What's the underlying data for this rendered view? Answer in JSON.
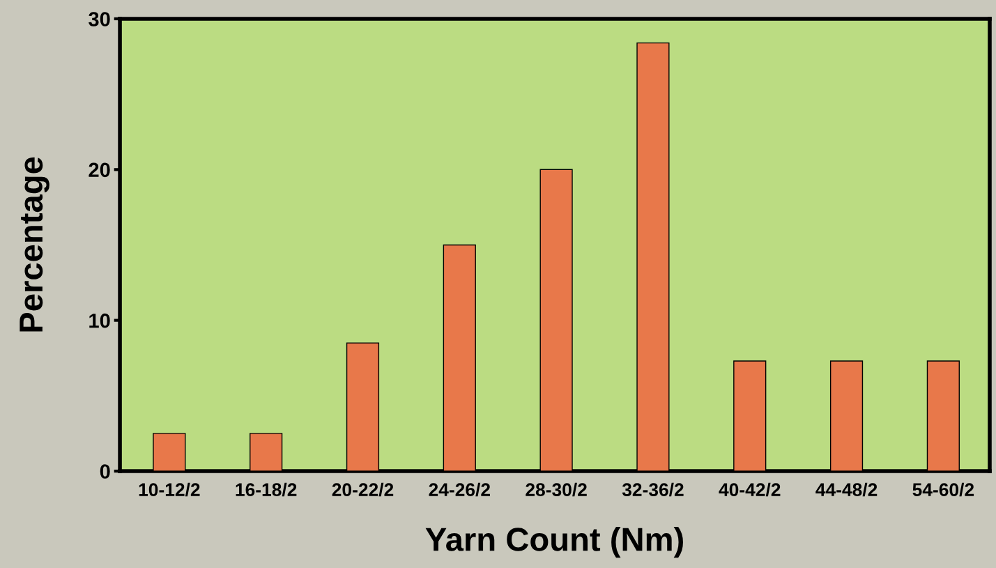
{
  "chart_data": {
    "type": "bar",
    "xlabel": "Yarn Count (Nm)",
    "ylabel": "Percentage",
    "categories": [
      "10-12/2",
      "16-18/2",
      "20-22/2",
      "24-26/2",
      "28-30/2",
      "32-36/2",
      "40-42/2",
      "44-48/2",
      "54-60/2"
    ],
    "values": [
      2.5,
      2.5,
      8.5,
      15,
      20,
      28.4,
      7.3,
      7.3,
      7.3
    ],
    "color": "#e8784a",
    "ylim": [
      0,
      30
    ],
    "yticks": [
      0,
      10,
      20,
      30
    ],
    "grid": false,
    "legend": false
  }
}
